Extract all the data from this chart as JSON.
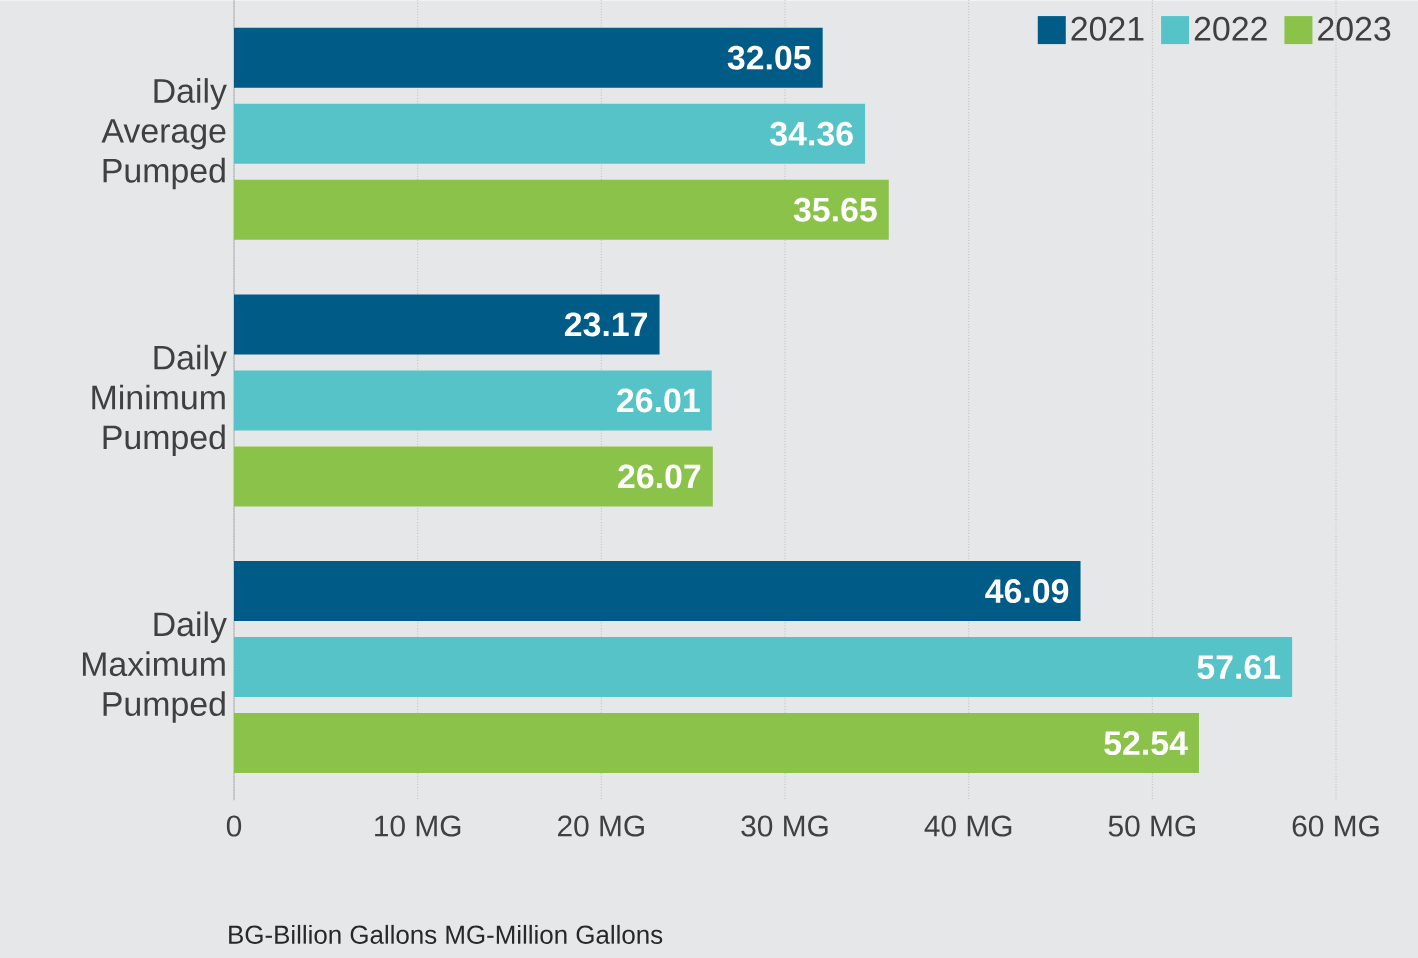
{
  "chart_data": {
    "type": "bar",
    "orientation": "horizontal",
    "categories": [
      "Daily Average Pumped",
      "Daily Minimum Pumped",
      "Daily Maximum Pumped"
    ],
    "series": [
      {
        "name": "2021",
        "color": "#005b87",
        "values": [
          32.05,
          23.17,
          46.09
        ]
      },
      {
        "name": "2022",
        "color": "#55c3c8",
        "values": [
          34.36,
          26.01,
          57.61
        ]
      },
      {
        "name": "2023",
        "color": "#8bc34a",
        "values": [
          35.65,
          26.07,
          52.54
        ]
      }
    ],
    "xlim": [
      0,
      60
    ],
    "xticks": [
      0,
      {
        "value": 10,
        "label": "10 MG"
      },
      {
        "value": 20,
        "label": "20 MG"
      },
      {
        "value": 30,
        "label": "30 MG"
      },
      {
        "value": 40,
        "label": "40 MG"
      },
      {
        "value": 50,
        "label": "50 MG"
      },
      {
        "value": 60,
        "label": "60 MG"
      }
    ],
    "grid": "x",
    "legend": "top right",
    "data_labels": true,
    "annotations": [
      "BG-Billion Gallons   MG-Million Gallons"
    ]
  }
}
